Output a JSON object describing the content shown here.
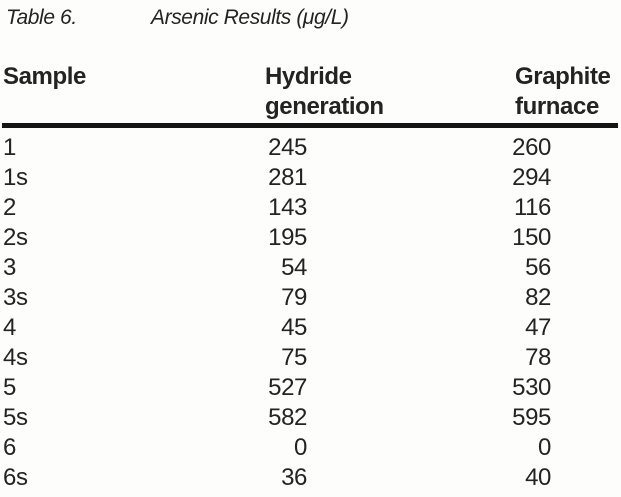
{
  "caption": {
    "label": "Table 6.",
    "title": "Arsenic Results (μg/L)"
  },
  "table": {
    "headers": [
      {
        "line1": "Sample",
        "line2": ""
      },
      {
        "line1": "Hydride",
        "line2": "generation"
      },
      {
        "line1": "Graphite",
        "line2": "furnace"
      }
    ],
    "rows": [
      {
        "sample": "1",
        "hydride": "245",
        "graphite": "260"
      },
      {
        "sample": "1s",
        "hydride": "281",
        "graphite": "294"
      },
      {
        "sample": "2",
        "hydride": "143",
        "graphite": "116"
      },
      {
        "sample": "2s",
        "hydride": "195",
        "graphite": "150"
      },
      {
        "sample": "3",
        "hydride": "54",
        "graphite": "56"
      },
      {
        "sample": "3s",
        "hydride": "79",
        "graphite": "82"
      },
      {
        "sample": "4",
        "hydride": "45",
        "graphite": "47"
      },
      {
        "sample": "4s",
        "hydride": "75",
        "graphite": "78"
      },
      {
        "sample": "5",
        "hydride": "527",
        "graphite": "530"
      },
      {
        "sample": "5s",
        "hydride": "582",
        "graphite": "595"
      },
      {
        "sample": "6",
        "hydride": "0",
        "graphite": "0"
      },
      {
        "sample": "6s",
        "hydride": "36",
        "graphite": "40"
      }
    ]
  },
  "colors": {
    "text": "#232323",
    "rule": "#141414",
    "background": "#fdfdfb"
  }
}
